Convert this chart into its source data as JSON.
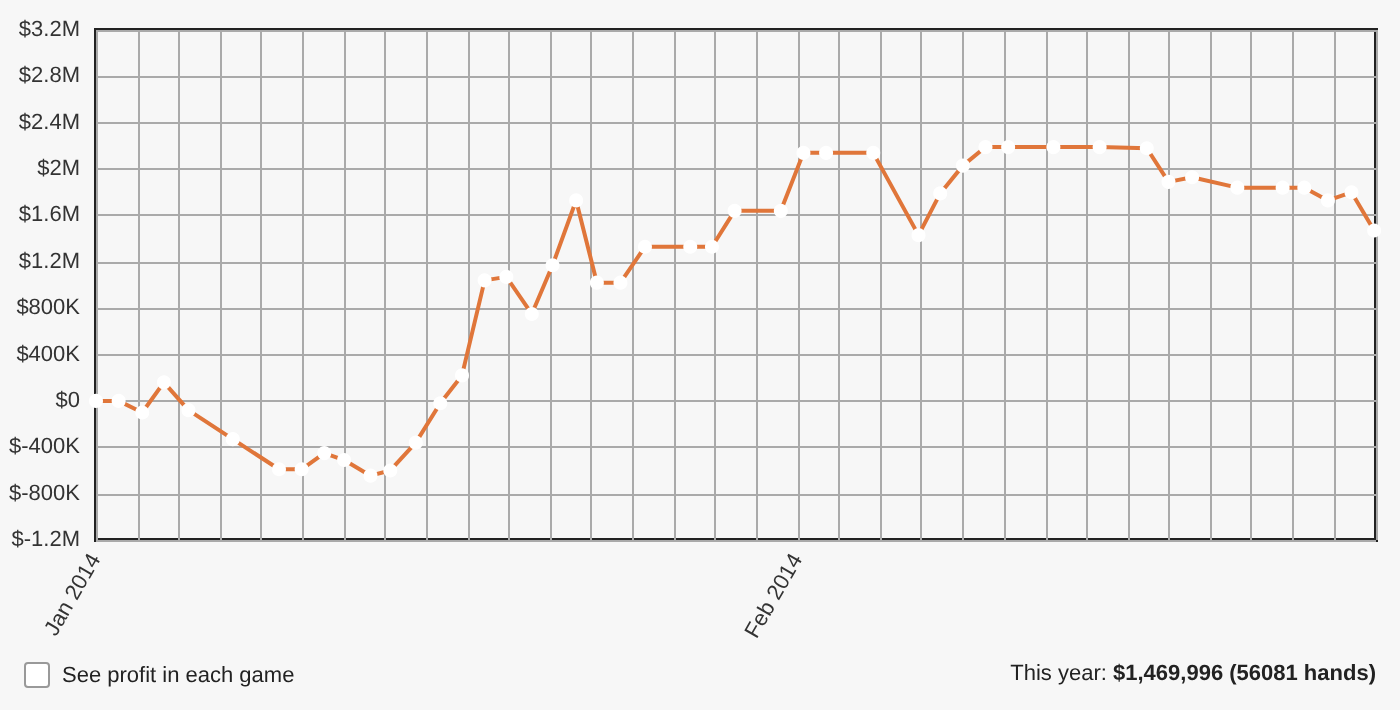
{
  "chart_data": {
    "type": "line",
    "x": [
      "2014-01-01T00:00",
      "2014-01-02T00:00",
      "2014-01-03T01:00",
      "2014-01-04T00:00",
      "2014-01-05T02:00",
      "2014-01-07T01:00",
      "2014-01-09T02:00",
      "2014-01-10T02:00",
      "2014-01-11T02:00",
      "2014-01-11T23:00",
      "2014-01-13T03:00",
      "2014-01-14T00:00",
      "2014-01-15T03:00",
      "2014-01-16T05:00",
      "2014-01-17T04:00",
      "2014-01-18T04:00",
      "2014-01-19T03:00",
      "2014-01-20T06:00",
      "2014-01-21T04:00",
      "2014-01-22T05:00",
      "2014-01-23T03:00",
      "2014-01-24T04:00",
      "2014-01-25T06:00",
      "2014-01-27T06:00",
      "2014-01-28T05:00",
      "2014-01-29T05:00",
      "2014-01-31T06:00",
      "2014-02-01T06:00",
      "2014-02-02T06:00",
      "2014-02-04T08:00",
      "2014-02-06T08:00",
      "2014-02-07T07:00",
      "2014-02-08T07:00",
      "2014-02-09T07:00",
      "2014-02-10T07:00",
      "2014-02-12T07:00",
      "2014-02-14T08:00",
      "2014-02-16T10:00",
      "2014-02-17T09:00",
      "2014-02-18T10:00",
      "2014-02-20T10:00",
      "2014-02-22T10:00",
      "2014-02-23T09:00",
      "2014-02-24T10:00",
      "2014-02-25T11:00",
      "2014-02-26T11:00"
    ],
    "series": [
      {
        "color": "#e0763a",
        "values": [
          0,
          0,
          -100000,
          160000,
          -80000,
          -330000,
          -590000,
          -590000,
          -450000,
          -510000,
          -645000,
          -600000,
          -360000,
          -20000,
          220000,
          1040000,
          1070000,
          750000,
          1170000,
          1730000,
          1020000,
          1020000,
          1330000,
          1330000,
          1330000,
          1640000,
          1640000,
          2140000,
          2140000,
          2140000,
          1430000,
          1790000,
          2030000,
          2190000,
          2190000,
          2190000,
          2190000,
          2180000,
          1890000,
          1930000,
          1840000,
          1840000,
          1840000,
          1730000,
          1800000,
          1470000
        ]
      }
    ],
    "xlim": [
      "2014-01-01T00:00",
      "2014-02-26T13:00"
    ],
    "xticks": [
      {
        "value": "2014-01-01T00:00",
        "label": "Jan 2014"
      },
      {
        "value": "2014-01-02T20:00",
        "label": null
      },
      {
        "value": "2014-01-04T16:00",
        "label": null
      },
      {
        "value": "2014-01-06T11:00",
        "label": null
      },
      {
        "value": "2014-01-08T07:00",
        "label": null
      },
      {
        "value": "2014-01-10T03:00",
        "label": null
      },
      {
        "value": "2014-01-11T23:00",
        "label": null
      },
      {
        "value": "2014-01-13T18:00",
        "label": null
      },
      {
        "value": "2014-01-15T14:00",
        "label": null
      },
      {
        "value": "2014-01-17T10:00",
        "label": null
      },
      {
        "value": "2014-01-19T06:00",
        "label": null
      },
      {
        "value": "2014-01-21T01:00",
        "label": null
      },
      {
        "value": "2014-01-22T21:00",
        "label": null
      },
      {
        "value": "2014-01-24T17:00",
        "label": null
      },
      {
        "value": "2014-01-26T13:00",
        "label": null
      },
      {
        "value": "2014-01-28T08:00",
        "label": null
      },
      {
        "value": "2014-01-30T04:00",
        "label": null
      },
      {
        "value": "2014-02-01T00:00",
        "label": "Feb 2014"
      },
      {
        "value": "2014-02-02T20:00",
        "label": null
      },
      {
        "value": "2014-02-04T16:00",
        "label": null
      },
      {
        "value": "2014-02-06T11:00",
        "label": null
      },
      {
        "value": "2014-02-08T07:00",
        "label": null
      },
      {
        "value": "2014-02-10T03:00",
        "label": null
      },
      {
        "value": "2014-02-11T23:00",
        "label": null
      },
      {
        "value": "2014-02-13T18:00",
        "label": null
      },
      {
        "value": "2014-02-15T14:00",
        "label": null
      },
      {
        "value": "2014-02-17T10:00",
        "label": null
      },
      {
        "value": "2014-02-19T06:00",
        "label": null
      },
      {
        "value": "2014-02-21T01:00",
        "label": null
      },
      {
        "value": "2014-02-22T21:00",
        "label": null
      },
      {
        "value": "2014-02-24T17:00",
        "label": null
      },
      {
        "value": "2014-02-26T13:00",
        "label": null
      }
    ],
    "ylim": [
      -1200000,
      3200000
    ],
    "yticks": [
      {
        "value": -1200000,
        "label": "$-1.2M"
      },
      {
        "value": -800000,
        "label": "$-800K"
      },
      {
        "value": -400000,
        "label": "$-400K"
      },
      {
        "value": 0,
        "label": "$0"
      },
      {
        "value": 400000,
        "label": "$400K"
      },
      {
        "value": 800000,
        "label": "$800K"
      },
      {
        "value": 1200000,
        "label": "$1.2M"
      },
      {
        "value": 1600000,
        "label": "$1.6M"
      },
      {
        "value": 2000000,
        "label": "$2M"
      },
      {
        "value": 2400000,
        "label": "$2.4M"
      },
      {
        "value": 2800000,
        "label": "$2.8M"
      },
      {
        "value": 3200000,
        "label": "$3.2M"
      }
    ],
    "grid": true,
    "marker": "circle",
    "line_style": "solid",
    "annotations": [
      "See profit in each game",
      "This year: $1,469,996 (56081 hands)"
    ]
  }
}
